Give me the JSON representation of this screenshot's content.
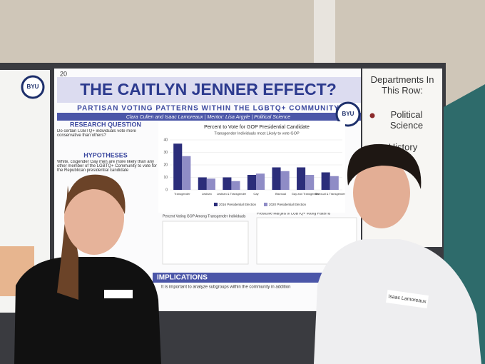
{
  "poster": {
    "number": "20",
    "logo": "BYU",
    "title": "THE CAITLYN JENNER EFFECT?",
    "subtitle": "PARTISAN VOTING PATTERNS WITHIN THE LGBTQ+ COMMUNITY",
    "authors": "Clara Cullen and Isaac Lamoreaux | Mentor: Lisa Argyle | Political Science",
    "sections": [
      {
        "heading": "RESEARCH QUESTION",
        "text": "Do certain LGBTQ+ individuals vote more conservative than others?"
      },
      {
        "heading": "HYPOTHESES",
        "text": "White, cisgender Gay men are more likely than any other member of the LGBTQ+ Community to vote for the Republican presidential candidate"
      },
      {
        "heading": "IMPLICATIONS",
        "text": "It is important to analyze subgroups within the community in addition"
      }
    ],
    "lower_left_chart_title": "Percent Voting GOP Among Transgender Individuals",
    "lower_right_chart_title": "Predictive Margins of LGBTQ+ Voting Patterns"
  },
  "chart_data": {
    "type": "bar",
    "title": "Percent to Vote for GOP Presidential Candidate",
    "subtitle": "Transgender Individuals most Likely to vote GOP",
    "categories": [
      "Transgender",
      "Lesbian",
      "Lesbian & Transgender",
      "Gay",
      "Bisexual",
      "Gay and Transgender",
      "Bisexual & Transgender"
    ],
    "series": [
      {
        "name": "2016 Presidential Election",
        "color": "#2b2d7a",
        "values": [
          37,
          10,
          10,
          12,
          18,
          18,
          14
        ]
      },
      {
        "name": "2020 Presidential Election",
        "color": "#8f8cc6",
        "values": [
          27,
          9,
          7,
          13,
          15,
          12,
          11
        ]
      }
    ],
    "ylim": [
      0,
      40
    ],
    "yticks": [
      0,
      10,
      20,
      30,
      40
    ],
    "grid": true
  },
  "left_poster": {
    "logo": "BYU"
  },
  "sign": {
    "title": "Departments In This Row:",
    "item": "Political Science",
    "item2": "History"
  },
  "name_tag": "Isaac Lamoreaux"
}
